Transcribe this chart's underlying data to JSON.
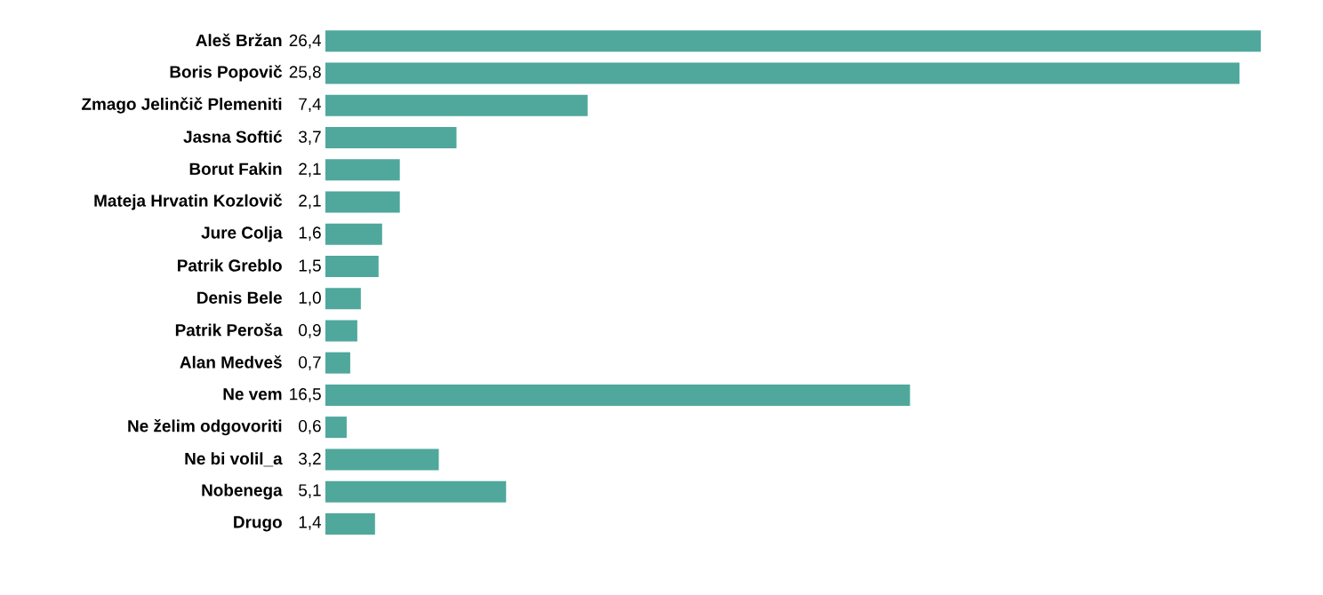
{
  "chart_data": {
    "type": "bar",
    "orientation": "horizontal",
    "color": "#4fa89b",
    "categories": [
      "Aleš Bržan",
      "Boris Popovič",
      "Zmago Jelinčič Plemeniti",
      "Jasna Softić",
      "Borut Fakin",
      "Mateja Hrvatin Kozlovič",
      "Jure Colja",
      "Patrik Greblo",
      "Denis Bele",
      "Patrik Peroša",
      "Alan Medveš",
      "Ne vem",
      "Ne želim odgovoriti",
      "Ne bi volil_a",
      "Nobenega",
      "Drugo"
    ],
    "values": [
      26.4,
      25.8,
      7.4,
      3.7,
      2.1,
      2.1,
      1.6,
      1.5,
      1.0,
      0.9,
      0.7,
      16.5,
      0.6,
      3.2,
      5.1,
      1.4
    ],
    "value_labels": [
      "26,4",
      "25,8",
      "7,4",
      "3,7",
      "2,1",
      "2,1",
      "1,6",
      "1,5",
      "1,0",
      "0,9",
      "0,7",
      "16,5",
      "0,6",
      "3,2",
      "5,1",
      "1,4"
    ]
  }
}
